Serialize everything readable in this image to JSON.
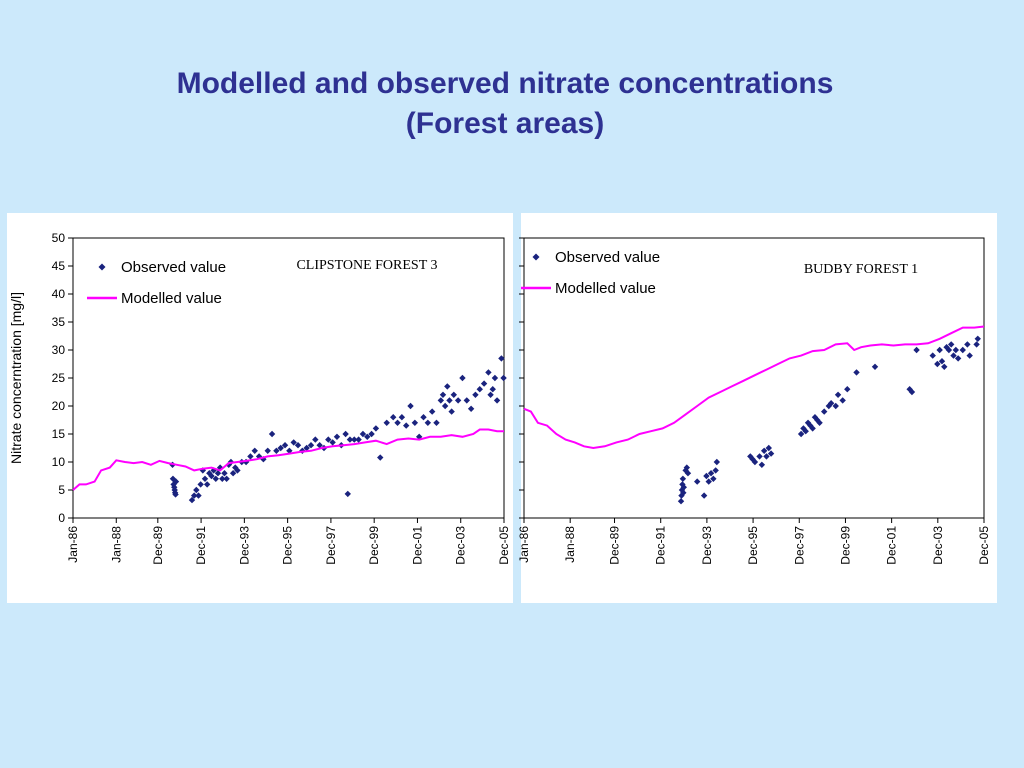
{
  "slide": {
    "title_line_1": "Modelled and observed nitrate concentrations",
    "title_line_2": "(Forest areas)",
    "title_color": "#2e3192",
    "background_color": "#cce9fb"
  },
  "chart_data": [
    {
      "type": "scatter+line",
      "title": "CLIPSTONE FOREST 3",
      "ylabel": "Nitrate concerntration [mg/l]",
      "xlabel": "",
      "ylim": [
        0,
        50
      ],
      "yticks": [
        0,
        5,
        10,
        15,
        20,
        25,
        30,
        35,
        40,
        45,
        50
      ],
      "xlim": [
        1986.0,
        2005.92
      ],
      "xtick_labels": [
        "Jan-86",
        "Jan-88",
        "Dec-89",
        "Dec-91",
        "Dec-93",
        "Dec-95",
        "Dec-97",
        "Dec-99",
        "Dec-01",
        "Dec-03",
        "Dec-05"
      ],
      "xtick_positions": [
        1986.0,
        1988.0,
        1989.92,
        1991.92,
        1993.92,
        1995.92,
        1997.92,
        1999.92,
        2001.92,
        2003.92,
        2005.92
      ],
      "grid": false,
      "legend": "top-left",
      "series": [
        {
          "name": "Observed value",
          "kind": "scatter",
          "marker": "diamond",
          "color": "#1a237e",
          "x": [
            1990.6,
            1990.62,
            1990.65,
            1990.68,
            1990.7,
            1990.72,
            1990.74,
            1990.76,
            1991.5,
            1991.6,
            1991.7,
            1991.8,
            1991.9,
            1992.0,
            1992.1,
            1992.2,
            1992.3,
            1992.4,
            1992.5,
            1992.6,
            1992.7,
            1992.8,
            1992.9,
            1993.0,
            1993.1,
            1993.2,
            1993.3,
            1993.4,
            1993.5,
            1993.6,
            1993.8,
            1994.0,
            1994.2,
            1994.4,
            1994.6,
            1994.8,
            1995.0,
            1995.2,
            1995.4,
            1995.6,
            1995.8,
            1996.0,
            1996.2,
            1996.4,
            1996.6,
            1996.8,
            1997.0,
            1997.2,
            1997.4,
            1997.6,
            1997.8,
            1998.0,
            1998.2,
            1998.4,
            1998.6,
            1998.7,
            1998.8,
            1999.0,
            1999.2,
            1999.4,
            1999.6,
            1999.8,
            2000.0,
            2000.2,
            2000.5,
            2000.8,
            2001.0,
            2001.2,
            2001.4,
            2001.6,
            2001.8,
            2002.0,
            2002.2,
            2002.4,
            2002.6,
            2002.8,
            2003.0,
            2003.1,
            2003.2,
            2003.3,
            2003.4,
            2003.5,
            2003.6,
            2003.8,
            2004.0,
            2004.2,
            2004.4,
            2004.6,
            2004.8,
            2005.0,
            2005.2,
            2005.3,
            2005.4,
            2005.5,
            2005.6,
            2005.8,
            2005.9
          ],
          "y": [
            9.5,
            7.0,
            6.0,
            5.5,
            5.0,
            4.5,
            4.2,
            6.5,
            3.2,
            4.0,
            5.0,
            4.0,
            6.0,
            8.5,
            7.0,
            6.0,
            8.0,
            7.5,
            8.5,
            7.0,
            8.0,
            9.0,
            7.0,
            8.0,
            7.0,
            9.5,
            10.0,
            8.0,
            9.0,
            8.5,
            10.0,
            10.0,
            11.0,
            12.0,
            11.0,
            10.5,
            12.0,
            15.0,
            12.0,
            12.5,
            13.0,
            12.0,
            13.5,
            13.0,
            12.0,
            12.5,
            13.0,
            14.0,
            13.0,
            12.5,
            14.0,
            13.5,
            14.5,
            13.0,
            15.0,
            4.3,
            14.0,
            14.0,
            14.0,
            15.0,
            14.5,
            15.0,
            16.0,
            10.8,
            17.0,
            18.0,
            17.0,
            18.0,
            16.5,
            20.0,
            17.0,
            14.5,
            18.0,
            17.0,
            19.0,
            17.0,
            21.0,
            22.0,
            20.0,
            23.5,
            21.0,
            19.0,
            22.0,
            21.0,
            25.0,
            21.0,
            19.5,
            22.0,
            23.0,
            24.0,
            26.0,
            22.0,
            23.0,
            25.0,
            21.0,
            28.5,
            25.0
          ]
        },
        {
          "name": "Modelled value",
          "kind": "line",
          "color": "#ff00ff",
          "x": [
            1986.0,
            1986.3,
            1986.6,
            1987.0,
            1987.3,
            1987.7,
            1988.0,
            1988.4,
            1988.8,
            1989.2,
            1989.6,
            1990.0,
            1990.4,
            1990.8,
            1991.2,
            1991.6,
            1992.0,
            1992.4,
            1992.8,
            1993.2,
            1993.6,
            1994.0,
            1994.5,
            1995.0,
            1995.5,
            1996.0,
            1996.5,
            1997.0,
            1997.5,
            1998.0,
            1998.5,
            1999.0,
            1999.5,
            2000.0,
            2000.5,
            2001.0,
            2001.5,
            2002.0,
            2002.5,
            2003.0,
            2003.5,
            2004.0,
            2004.5,
            2004.8,
            2005.2,
            2005.6,
            2005.92
          ],
          "y": [
            5.0,
            6.0,
            6.0,
            6.5,
            8.5,
            9.0,
            10.3,
            10.0,
            9.8,
            10.0,
            9.5,
            10.2,
            9.8,
            9.5,
            9.2,
            8.5,
            8.8,
            9.0,
            8.5,
            9.8,
            10.0,
            10.2,
            10.5,
            11.0,
            11.2,
            11.5,
            11.8,
            12.0,
            12.5,
            12.8,
            13.0,
            13.2,
            13.5,
            13.8,
            13.2,
            14.0,
            14.2,
            14.0,
            14.5,
            14.5,
            14.8,
            14.5,
            15.0,
            15.8,
            15.8,
            15.5,
            15.5
          ]
        }
      ]
    },
    {
      "type": "scatter+line",
      "title": "BUDBY FOREST 1",
      "ylabel": "",
      "xlabel": "",
      "ylim": [
        0,
        50
      ],
      "xlim": [
        1986.0,
        2005.92
      ],
      "xtick_labels": [
        "Jan-86",
        "Jan-88",
        "Dec-89",
        "Dec-91",
        "Dec-93",
        "Dec-95",
        "Dec-97",
        "Dec-99",
        "Dec-01",
        "Dec-03",
        "Dec-05"
      ],
      "xtick_positions": [
        1986.0,
        1988.0,
        1989.92,
        1991.92,
        1993.92,
        1995.92,
        1997.92,
        1999.92,
        2001.92,
        2003.92,
        2005.92
      ],
      "grid": false,
      "legend": "top-left",
      "series": [
        {
          "name": "Observed value",
          "kind": "scatter",
          "marker": "diamond",
          "color": "#1a237e",
          "x": [
            1992.8,
            1992.82,
            1992.84,
            1992.86,
            1992.88,
            1992.9,
            1992.92,
            1993.0,
            1993.05,
            1993.1,
            1993.5,
            1993.8,
            1993.9,
            1994.0,
            1994.1,
            1994.2,
            1994.3,
            1994.35,
            1995.8,
            1995.9,
            1996.0,
            1996.2,
            1996.3,
            1996.4,
            1996.5,
            1996.6,
            1996.7,
            1998.0,
            1998.1,
            1998.2,
            1998.3,
            1998.4,
            1998.5,
            1998.6,
            1998.7,
            1998.8,
            1999.0,
            1999.2,
            1999.3,
            1999.5,
            1999.6,
            1999.8,
            2000.0,
            2000.4,
            2001.2,
            2002.7,
            2002.8,
            2003.0,
            2003.7,
            2003.9,
            2004.0,
            2004.1,
            2004.2,
            2004.3,
            2004.4,
            2004.5,
            2004.6,
            2004.7,
            2004.8,
            2005.0,
            2005.2,
            2005.3,
            2005.6,
            2005.65
          ],
          "y": [
            3.0,
            4.0,
            5.0,
            6.0,
            7.0,
            4.5,
            5.5,
            8.5,
            9.0,
            8.0,
            6.5,
            4.0,
            7.5,
            6.5,
            8.0,
            7.0,
            8.5,
            10.0,
            11.0,
            10.5,
            10.0,
            11.0,
            9.5,
            12.0,
            11.0,
            12.5,
            11.5,
            15.0,
            16.0,
            15.5,
            17.0,
            16.5,
            16.0,
            18.0,
            17.5,
            17.0,
            19.0,
            20.0,
            20.5,
            20.0,
            22.0,
            21.0,
            23.0,
            26.0,
            27.0,
            23.0,
            22.5,
            30.0,
            29.0,
            27.5,
            30.0,
            28.0,
            27.0,
            30.5,
            30.0,
            31.0,
            29.0,
            30.0,
            28.5,
            30.0,
            31.0,
            29.0,
            31.0,
            32.0
          ]
        },
        {
          "name": "Modelled value",
          "kind": "line",
          "color": "#ff00ff",
          "x": [
            1986.0,
            1986.3,
            1986.6,
            1987.0,
            1987.4,
            1987.8,
            1988.2,
            1988.6,
            1989.0,
            1989.5,
            1990.0,
            1990.5,
            1991.0,
            1991.5,
            1992.0,
            1992.5,
            1993.0,
            1993.5,
            1994.0,
            1994.5,
            1995.0,
            1995.5,
            1996.0,
            1996.5,
            1997.0,
            1997.5,
            1998.0,
            1998.5,
            1999.0,
            1999.5,
            2000.0,
            2000.3,
            2000.6,
            2001.0,
            2001.5,
            2002.0,
            2002.5,
            2003.0,
            2003.5,
            2004.0,
            2004.5,
            2005.0,
            2005.5,
            2005.92
          ],
          "y": [
            19.5,
            19.0,
            17.0,
            16.5,
            15.0,
            14.0,
            13.5,
            12.8,
            12.5,
            12.8,
            13.5,
            14.0,
            15.0,
            15.5,
            16.0,
            17.0,
            18.5,
            20.0,
            21.5,
            22.5,
            23.5,
            24.5,
            25.5,
            26.5,
            27.5,
            28.5,
            29.0,
            29.8,
            30.0,
            31.0,
            31.2,
            30.0,
            30.5,
            30.8,
            31.0,
            30.8,
            31.0,
            31.0,
            31.2,
            32.0,
            33.0,
            34.0,
            34.0,
            34.2
          ]
        }
      ]
    }
  ]
}
